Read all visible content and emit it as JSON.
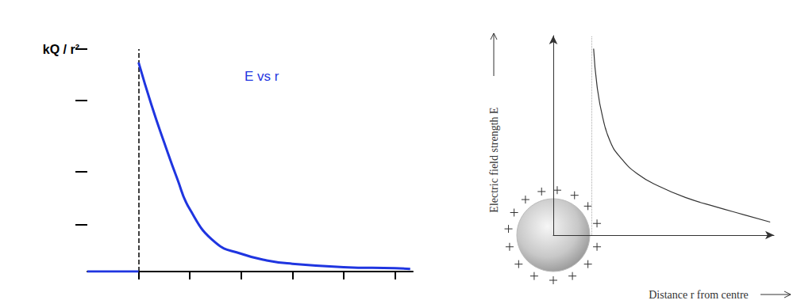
{
  "chart_data": [
    {
      "type": "line",
      "annotation": "E vs r",
      "x": [
        0,
        1,
        1,
        1,
        1.25,
        1.5,
        1.75,
        2,
        2.5,
        3,
        3.5,
        4,
        5,
        6,
        6.3
      ],
      "values": [
        0,
        0,
        null,
        0.94,
        0.75,
        0.58,
        0.42,
        0.28,
        0.13,
        0.08,
        0.05,
        0.035,
        0.02,
        0.015,
        0.012
      ],
      "color": "#1f35e0",
      "xlim": [
        0,
        6.35
      ],
      "ylim": [
        0,
        1
      ],
      "xticks": [
        {
          "value": 1,
          "label": null
        },
        {
          "value": 2,
          "label": null
        },
        {
          "value": 3,
          "label": null
        },
        {
          "value": 4,
          "label": null
        },
        {
          "value": 5,
          "label": null
        },
        {
          "value": 6,
          "label": null
        }
      ],
      "yticks": [
        {
          "value": 0.21,
          "label": null
        },
        {
          "value": 0.45,
          "label": null
        },
        {
          "value": 0.77,
          "label": null
        },
        {
          "value": 1,
          "label": "kQ / r²"
        }
      ],
      "dashed_line_x": 1,
      "tick_labels": "y"
    },
    {
      "type": "line",
      "x_label": "Distance r from centre",
      "y_label": "Electric field strength E",
      "x": [
        1.06,
        1.15,
        1.3,
        1.5,
        1.75,
        2.2,
        2.8,
        3.5,
        4.3,
        5.0,
        5.7
      ],
      "values": [
        1.0,
        0.8,
        0.63,
        0.5,
        0.42,
        0.33,
        0.26,
        0.2,
        0.15,
        0.11,
        0.07
      ],
      "color": "#333333",
      "xlim": [
        0,
        5.8
      ],
      "ylim": [
        0,
        1.07
      ],
      "dashed_line_x": 1,
      "tick_labels": false
    }
  ]
}
